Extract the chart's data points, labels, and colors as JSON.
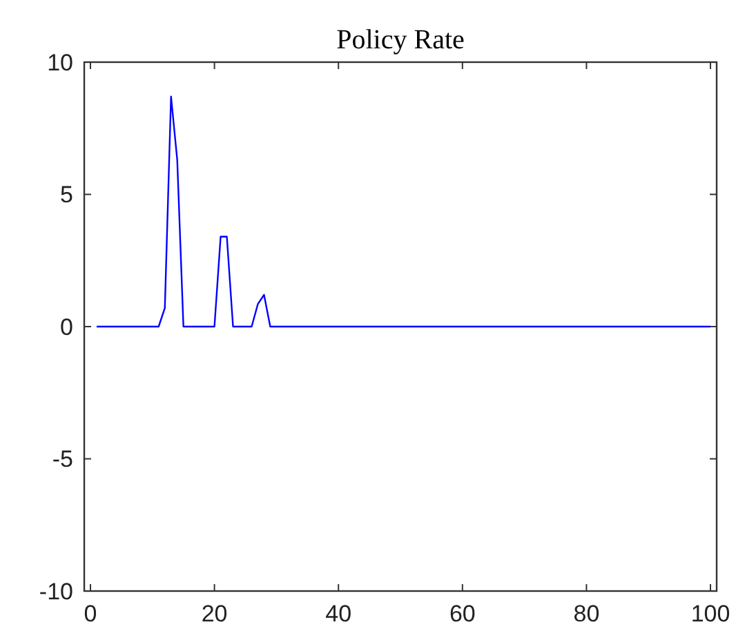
{
  "chart_data": {
    "type": "line",
    "title": "Policy Rate",
    "x": [
      1,
      11,
      12,
      13,
      14,
      15,
      20,
      21,
      22,
      23,
      26,
      27,
      28,
      29,
      100
    ],
    "series": [
      {
        "color": "#0000ff",
        "values": [
          0,
          0,
          0.7,
          8.7,
          6.3,
          0,
          0,
          3.4,
          3.4,
          0,
          0,
          0.85,
          1.2,
          0,
          0
        ]
      }
    ],
    "xlim": [
      -1,
      101
    ],
    "xticks": [
      0,
      20,
      40,
      60,
      80,
      100
    ],
    "ylim": [
      -10,
      10
    ],
    "yticks": [
      -10,
      -5,
      0,
      5,
      10
    ],
    "grid": false,
    "marker": "none",
    "line_style": "solid"
  }
}
